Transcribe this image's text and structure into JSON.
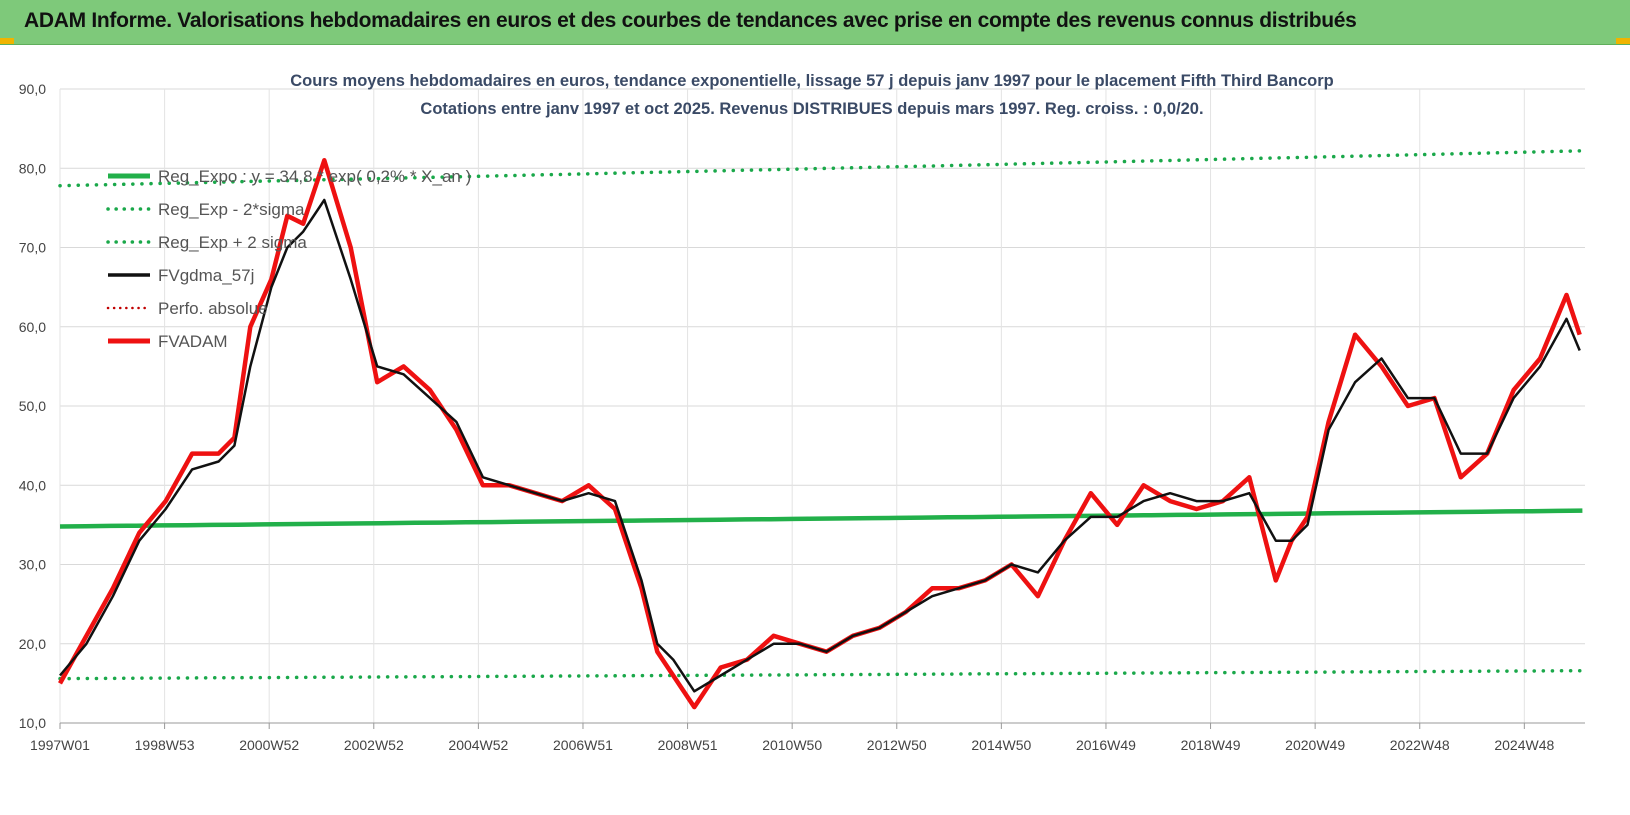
{
  "banner": {
    "title": "ADAM Informe. Valorisations hebdomadaires en euros et des courbes de tendances avec prise en compte des revenus connus distribués"
  },
  "colors": {
    "banner_bg": "#7ec97a",
    "reg_green": "#22b04a",
    "dotted_green": "#1aa84a",
    "black": "#111111",
    "red": "#ee1111",
    "dark_red": "#c00000"
  },
  "chart_data": {
    "type": "line",
    "title": "Cours moyens hebdomadaires en euros, tendance exponentielle, lissage 57 j depuis janv 1997 pour le placement Fifth Third Bancorp",
    "subtitle": "Cotations entre janv 1997 et oct 2025. Revenus DISTRIBUES depuis mars 1997. Reg. croiss. : 0,0/20.",
    "ylim": [
      10,
      90
    ],
    "y_ticks": [
      "10,0",
      "20,0",
      "30,0",
      "40,0",
      "50,0",
      "60,0",
      "70,0",
      "80,0",
      "90,0"
    ],
    "x_ticks": [
      "1997W01",
      "1998W53",
      "2000W52",
      "2002W52",
      "2004W52",
      "2006W51",
      "2008W51",
      "2010W50",
      "2012W50",
      "2014W50",
      "2016W49",
      "2018W49",
      "2020W49",
      "2022W48",
      "2024W48"
    ],
    "grid": true,
    "legend_position": "top-left",
    "legend": [
      "Reg_Expo : y = 34,8 * exp( 0,2% * X_an )",
      "Reg_Exp - 2*sigma",
      "Reg_Exp + 2 sigma",
      "FVgdma_57j",
      "Perfo. absolue",
      "FVADAM"
    ],
    "x": [
      1997.0,
      1997.5,
      1998.0,
      1998.5,
      1999.0,
      1999.5,
      2000.0,
      2000.3,
      2000.6,
      2001.0,
      2001.3,
      2001.6,
      2002.0,
      2002.5,
      2003.0,
      2003.5,
      2004.0,
      2004.5,
      2005.0,
      2005.5,
      2006.0,
      2006.5,
      2007.0,
      2007.5,
      2008.0,
      2008.3,
      2008.6,
      2009.0,
      2009.5,
      2010.0,
      2010.5,
      2011.0,
      2011.5,
      2012.0,
      2012.5,
      2013.0,
      2013.5,
      2014.0,
      2014.5,
      2015.0,
      2015.5,
      2016.0,
      2016.5,
      2017.0,
      2017.5,
      2018.0,
      2018.5,
      2019.0,
      2019.5,
      2020.0,
      2020.3,
      2020.6,
      2021.0,
      2021.5,
      2022.0,
      2022.5,
      2023.0,
      2023.5,
      2024.0,
      2024.5,
      2025.0,
      2025.5,
      2025.75
    ],
    "series": [
      {
        "name": "FVgdma_57j",
        "values": [
          16,
          20,
          26,
          33,
          37,
          42,
          43,
          45,
          55,
          65,
          70,
          72,
          76,
          66,
          55,
          54,
          51,
          48,
          41,
          40,
          39,
          38,
          39,
          38,
          28,
          20,
          18,
          14,
          16,
          18,
          20,
          20,
          19,
          21,
          22,
          24,
          26,
          27,
          28,
          30,
          29,
          33,
          36,
          36,
          38,
          39,
          38,
          38,
          39,
          33,
          33,
          35,
          47,
          53,
          56,
          51,
          51,
          44,
          44,
          51,
          55,
          61,
          57
        ]
      },
      {
        "name": "FVADAM",
        "values": [
          15,
          21,
          27,
          34,
          38,
          44,
          44,
          46,
          60,
          66,
          74,
          73,
          81,
          70,
          53,
          55,
          52,
          47,
          40,
          40,
          39,
          38,
          40,
          37,
          27,
          19,
          16,
          12,
          17,
          18,
          21,
          20,
          19,
          21,
          22,
          24,
          27,
          27,
          28,
          30,
          26,
          33,
          39,
          35,
          40,
          38,
          37,
          38,
          41,
          28,
          33,
          36,
          48,
          59,
          55,
          50,
          51,
          41,
          44,
          52,
          56,
          64,
          59
        ]
      }
    ],
    "reg_expo": {
      "start": [
        1997,
        34.8
      ],
      "end": [
        2025.8,
        36.8
      ]
    },
    "reg_minus_2sigma": {
      "start": [
        1997,
        15.6
      ],
      "end": [
        2025.8,
        16.6
      ]
    },
    "reg_plus_2sigma": {
      "start": [
        1997,
        77.8
      ],
      "end": [
        2025.8,
        82.2
      ]
    }
  }
}
